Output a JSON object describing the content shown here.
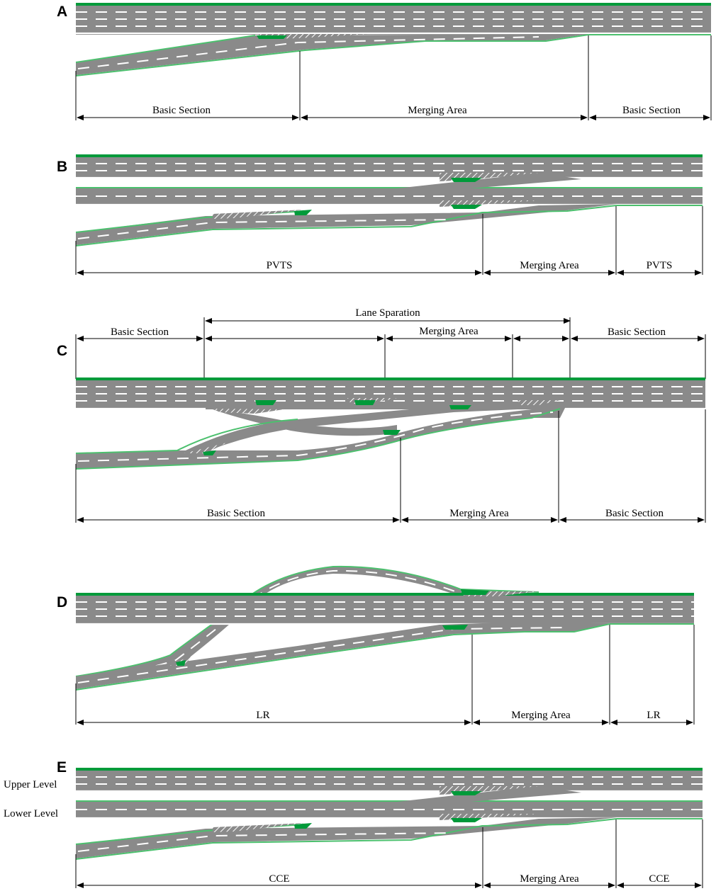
{
  "panels": [
    {
      "letter": "A",
      "bottom_labels": [
        "Basic Section",
        "Merging Area",
        "Basic Section"
      ]
    },
    {
      "letter": "B",
      "bottom_labels": [
        "PVTS",
        "Merging Area",
        "PVTS"
      ]
    },
    {
      "letter": "C",
      "top_span_label": "Lane Sparation",
      "top_labels": [
        "Basic Section",
        "Merging Area",
        "Basic Section"
      ],
      "bottom_labels": [
        "Basic Section",
        "Merging Area",
        "Basic Section"
      ]
    },
    {
      "letter": "D",
      "bottom_labels": [
        "LR",
        "Merging Area",
        "LR"
      ]
    },
    {
      "letter": "E",
      "side_labels": [
        "Upper Level",
        "Lower Level"
      ],
      "bottom_labels": [
        "CCE",
        "Merging Area",
        "CCE"
      ]
    }
  ],
  "colors": {
    "road": "#8a8a8a",
    "median_green": "#009a3a",
    "edge_green": "#4cc06e",
    "marking": "#ffffff"
  }
}
